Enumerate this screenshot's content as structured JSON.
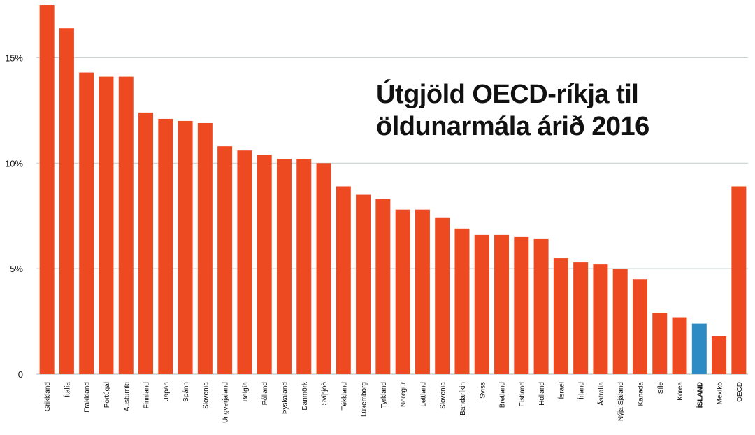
{
  "chart_data": {
    "type": "bar",
    "title_lines": [
      "Útgjöld OECD-ríkja til",
      "öldunarmála árið 2016"
    ],
    "categories": [
      "Grikkland",
      "Ítalía",
      "Frakkland",
      "Portúgal",
      "Austurríki",
      "Finnland",
      "Japan",
      "Spánn",
      "Slóvenía",
      "Ungverjaland",
      "Belgía",
      "Pólland",
      "Þýskaland",
      "Danmörk",
      "Svíþjóð",
      "Tékkland",
      "Lúxemborg",
      "Tyrkland",
      "Noregur",
      "Lettland",
      "Slóvenía",
      "Bandaríkin",
      "Sviss",
      "Bretland",
      "Eistland",
      "Holland",
      "Ísrael",
      "Írland",
      "Ástralía",
      "Nýja Sjáland",
      "Kanada",
      "Síle",
      "Kórea",
      "ÍSLAND",
      "Mexíkó",
      "OECD"
    ],
    "values": [
      17.5,
      16.4,
      14.3,
      14.1,
      14.1,
      12.4,
      12.1,
      12.0,
      11.9,
      10.8,
      10.6,
      10.4,
      10.2,
      10.2,
      10.0,
      8.9,
      8.5,
      8.3,
      7.8,
      7.8,
      7.4,
      6.9,
      6.6,
      6.6,
      6.5,
      6.4,
      5.5,
      5.3,
      5.2,
      5.0,
      4.5,
      2.9,
      2.7,
      2.4,
      1.8,
      8.9
    ],
    "highlight_index": 33,
    "y_ticks": [
      {
        "value": 0,
        "label": "0"
      },
      {
        "value": 5,
        "label": "5%"
      },
      {
        "value": 10,
        "label": "10%"
      },
      {
        "value": 15,
        "label": "15%"
      }
    ],
    "ylim": [
      0,
      17.6
    ],
    "grid": true,
    "colors": {
      "bar": "#ee4a22",
      "highlight": "#2f8bc4",
      "grid": "#c9d3d3",
      "text": "#111111"
    }
  }
}
